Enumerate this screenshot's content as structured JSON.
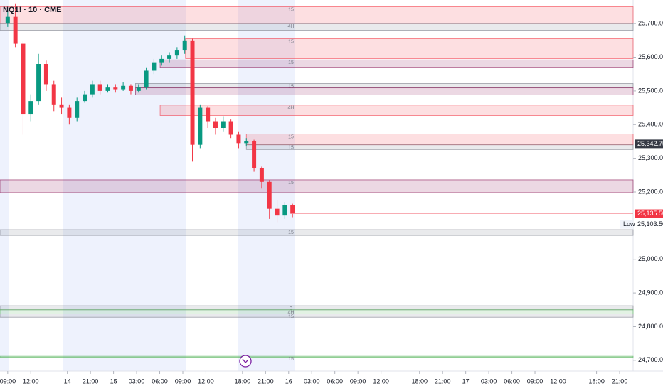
{
  "chart_data": {
    "type": "candlestick",
    "title": "NQ1! · 10 · CME",
    "up_color": "#089981",
    "down_color": "#f23645",
    "x": [
      0,
      1,
      2,
      3,
      4,
      5,
      6,
      7,
      8,
      9,
      10,
      11,
      12,
      13,
      14,
      15,
      16,
      17,
      18,
      19,
      20,
      21,
      22,
      23,
      24,
      25,
      26,
      27,
      28,
      29,
      30,
      31,
      32,
      33,
      34,
      35,
      36,
      37
    ],
    "open": [
      25700,
      25720,
      25640,
      25430,
      25470,
      25580,
      25520,
      25460,
      25450,
      25420,
      25470,
      25490,
      25520,
      25500,
      25510,
      25505,
      25515,
      25500,
      25510,
      25560,
      25585,
      25595,
      25605,
      25620,
      25650,
      25340,
      25450,
      25410,
      25390,
      25410,
      25370,
      25345,
      25350,
      25270,
      25230,
      25150,
      25130,
      25160
    ],
    "high": [
      25740,
      25760,
      25650,
      25490,
      25610,
      25590,
      25530,
      25480,
      25460,
      25480,
      25500,
      25530,
      25530,
      25520,
      25520,
      25525,
      25520,
      25520,
      25570,
      25595,
      25605,
      25615,
      25630,
      25665,
      25655,
      25460,
      25455,
      25420,
      25425,
      25415,
      25380,
      25360,
      25355,
      25275,
      25235,
      25175,
      25170,
      25165
    ],
    "low": [
      25690,
      25630,
      25370,
      25410,
      25460,
      25500,
      25440,
      25430,
      25400,
      25410,
      25465,
      25480,
      25490,
      25495,
      25495,
      25500,
      25490,
      25495,
      25505,
      25550,
      25575,
      25585,
      25595,
      25610,
      25290,
      25330,
      25390,
      25370,
      25380,
      25360,
      25330,
      25335,
      25260,
      25210,
      25120,
      25110,
      25120,
      25125
    ],
    "close": [
      25720,
      25640,
      25430,
      25470,
      25580,
      25520,
      25460,
      25450,
      25420,
      25470,
      25490,
      25520,
      25500,
      25510,
      25505,
      25515,
      25500,
      25510,
      25560,
      25585,
      25595,
      25605,
      25620,
      25650,
      25340,
      25450,
      25410,
      25390,
      25410,
      25370,
      25345,
      25350,
      25270,
      25230,
      25150,
      25130,
      25160,
      25135.5
    ],
    "xlim": [
      -1,
      81.25
    ],
    "ylim": [
      24668,
      25770
    ],
    "xticks": [
      {
        "value": 0,
        "label": "09:00"
      },
      {
        "value": 3,
        "label": "12:00"
      },
      {
        "value": 7.75,
        "label": "14"
      },
      {
        "value": 10.75,
        "label": "21:00"
      },
      {
        "value": 13.75,
        "label": "15"
      },
      {
        "value": 16.75,
        "label": "03:00"
      },
      {
        "value": 19.75,
        "label": "06:00"
      },
      {
        "value": 22.75,
        "label": "09:00"
      },
      {
        "value": 25.75,
        "label": "12:00"
      },
      {
        "value": 30.5,
        "label": "18:00"
      },
      {
        "value": 33.5,
        "label": "21:00"
      },
      {
        "value": 36.5,
        "label": "16"
      },
      {
        "value": 39.5,
        "label": "03:00"
      },
      {
        "value": 42.5,
        "label": "06:00"
      },
      {
        "value": 45.5,
        "label": "09:00"
      },
      {
        "value": 48.5,
        "label": "12:00"
      },
      {
        "value": 53.5,
        "label": "18:00"
      },
      {
        "value": 56.5,
        "label": "21:00"
      },
      {
        "value": 59.5,
        "label": "17"
      },
      {
        "value": 62.5,
        "label": "03:00"
      },
      {
        "value": 65.5,
        "label": "06:00"
      },
      {
        "value": 68.5,
        "label": "09:00"
      },
      {
        "value": 71.5,
        "label": "12:00"
      },
      {
        "value": 76.5,
        "label": "18:00"
      },
      {
        "value": 79.5,
        "label": "21:00"
      }
    ],
    "yticks": [
      {
        "value": 24700,
        "label": "24,700.00"
      },
      {
        "value": 24800,
        "label": "24,800.00"
      },
      {
        "value": 24900,
        "label": "24,900.00"
      },
      {
        "value": 25000,
        "label": "25,000.00"
      },
      {
        "value": 25100,
        "label": "25,100.00"
      },
      {
        "value": 25200,
        "label": "25,200.00"
      },
      {
        "value": 25300,
        "label": "25,300.00"
      },
      {
        "value": 25400,
        "label": "25,400.00"
      },
      {
        "value": 25500,
        "label": "25,500.00"
      },
      {
        "value": 25600,
        "label": "25,600.00"
      },
      {
        "value": 25700,
        "label": "25,700.00"
      }
    ],
    "zones": [
      {
        "x0": -1,
        "y0": 25700,
        "y1": 25750,
        "label": "15",
        "color": "#f23645"
      },
      {
        "x0": -1,
        "y0": 25680,
        "y1": 25700,
        "label": "4H",
        "color": "#787b86"
      },
      {
        "x0": 23.1,
        "y0": 25596,
        "y1": 25655,
        "label": "15",
        "color": "#f23645"
      },
      {
        "x0": 19.8,
        "y0": 25570,
        "y1": 25592,
        "label": "15",
        "color": "#880e4f"
      },
      {
        "x0": 16.6,
        "y0": 25510,
        "y1": 25522,
        "label": "15",
        "color": "#787b86"
      },
      {
        "x0": 16.6,
        "y0": 25488,
        "y1": 25509,
        "label": "",
        "color": "#880e4f"
      },
      {
        "x0": 19.8,
        "y0": 25427,
        "y1": 25458,
        "label": "4H",
        "color": "#f23645"
      },
      {
        "x0": 31,
        "y0": 25340,
        "y1": 25372,
        "label": "15",
        "color": "#f23645"
      },
      {
        "x0": 31,
        "y0": 25326,
        "y1": 25340,
        "label": "15",
        "color": "#787b86"
      },
      {
        "x0": -1,
        "y0": 25198,
        "y1": 25236,
        "label": "15",
        "color": "#880e4f"
      },
      {
        "x0": -1,
        "y0": 25071,
        "y1": 25088,
        "label": "15",
        "color": "#787b86"
      },
      {
        "x0": -1,
        "y0": 24850,
        "y1": 24862,
        "label": "0",
        "color": "#787b86"
      },
      {
        "x0": -1,
        "y0": 24838,
        "y1": 24850,
        "label": "4H",
        "color": "#4caf50"
      },
      {
        "x0": -1,
        "y0": 24828,
        "y1": 24838,
        "label": "15",
        "color": "#787b86"
      },
      {
        "x0": -1,
        "y0": 24709,
        "y1": 24712,
        "label": "15",
        "color": "#4caf50"
      }
    ],
    "price_labels": [
      {
        "value": 25342.75,
        "label": "25,342.75",
        "color": "#363a45"
      },
      {
        "value": 25135.5,
        "label": "25,135.50",
        "color": "#f23645"
      },
      {
        "value": 25103.5,
        "label": "25,103.50",
        "color": "#ffffff",
        "tag": "Low"
      }
    ]
  }
}
